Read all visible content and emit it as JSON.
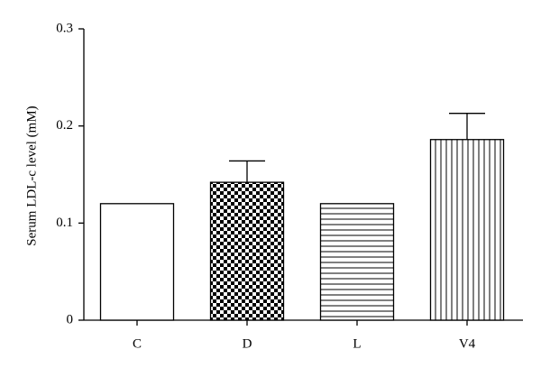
{
  "chart_data": {
    "type": "bar",
    "ylabel": "Serum LDL-c level (mM)",
    "categories": [
      "C",
      "D",
      "L",
      "V4"
    ],
    "values": [
      0.12,
      0.142,
      0.12,
      0.186
    ],
    "errors": [
      null,
      0.022,
      null,
      0.027
    ],
    "patterns": [
      "none",
      "checker",
      "hlines",
      "vlines"
    ],
    "color": "#000000",
    "ylim": [
      0,
      0.3
    ],
    "yticks": [
      0,
      0.1,
      0.2,
      0.3
    ],
    "grid": false
  }
}
